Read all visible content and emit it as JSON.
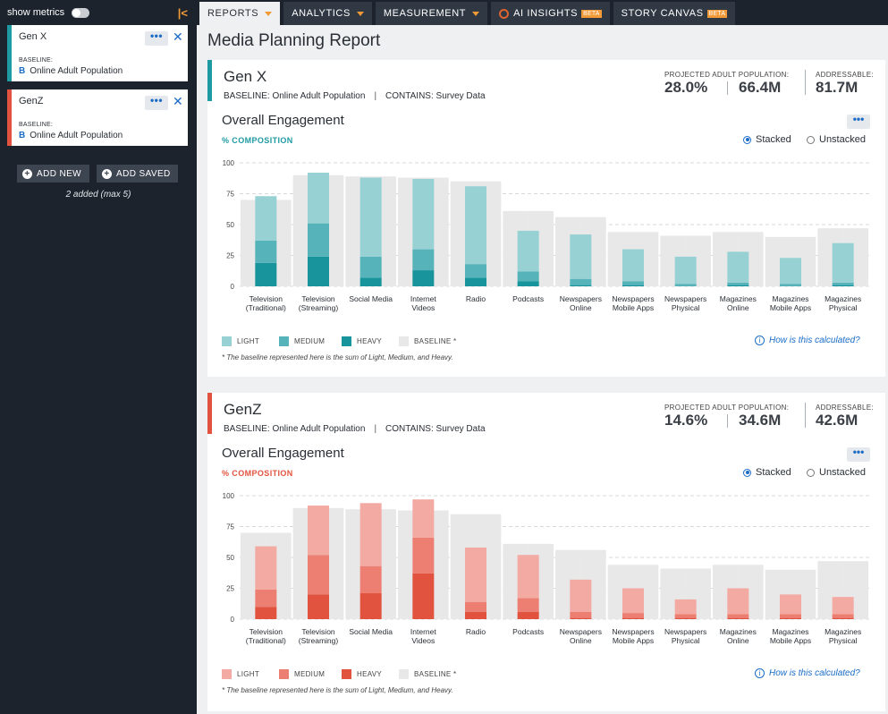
{
  "sidebar": {
    "show_metrics": "show metrics",
    "collapse_icon": "|<",
    "segments": [
      {
        "name": "Gen X",
        "color": "#1f9aa3",
        "baseline_label": "BASELINE:",
        "baseline": "Online Adult Population",
        "more": "•••",
        "close": "✕"
      },
      {
        "name": "GenZ",
        "color": "#e2533f",
        "baseline_label": "BASELINE:",
        "baseline": "Online Adult Population",
        "more": "•••",
        "close": "✕"
      }
    ],
    "add_new": "ADD NEW",
    "add_saved": "ADD SAVED",
    "added_note": "2 added (max 5)"
  },
  "nav": {
    "tabs": [
      {
        "label": "REPORTS",
        "dropdown": true
      },
      {
        "label": "ANALYTICS",
        "dropdown": true
      },
      {
        "label": "MEASUREMENT",
        "dropdown": true
      },
      {
        "label": "AI INSIGHTS",
        "badge": "BETA"
      },
      {
        "label": "STORY CANVAS",
        "badge": "BETA"
      }
    ]
  },
  "page": {
    "title": "Media Planning Report"
  },
  "panels": [
    {
      "segment": "Gen X",
      "accent": "#1f9aa3",
      "baseline": "BASELINE: Online Adult Population",
      "contains": "CONTAINS: Survey Data",
      "proj_label": "PROJECTED ADULT POPULATION:",
      "pct": "28.0%",
      "proj_value": "66.4M",
      "addr_label": "ADDRESSABLE:",
      "addr_value": "81.7M",
      "engagement_title": "Overall Engagement",
      "composition_label": "% COMPOSITION",
      "stacked_label": "Stacked",
      "unstacked_label": "Unstacked",
      "how_calc": "How is this calculated?",
      "footnote": "* The baseline represented here is the sum of Light, Medium, and Heavy.",
      "legend": [
        "LIGHT",
        "MEDIUM",
        "HEAVY",
        "BASELINE *"
      ]
    },
    {
      "segment": "GenZ",
      "accent": "#e2533f",
      "baseline": "BASELINE: Online Adult Population",
      "contains": "CONTAINS: Survey Data",
      "proj_label": "PROJECTED ADULT POPULATION:",
      "pct": "14.6%",
      "proj_value": "34.6M",
      "addr_label": "ADDRESSABLE:",
      "addr_value": "42.6M",
      "engagement_title": "Overall Engagement",
      "composition_label": "% COMPOSITION",
      "stacked_label": "Stacked",
      "unstacked_label": "Unstacked",
      "how_calc": "How is this calculated?",
      "footnote": "* The baseline represented here is the sum of Light, Medium, and Heavy.",
      "legend": [
        "LIGHT",
        "MEDIUM",
        "HEAVY",
        "BASELINE *"
      ]
    }
  ],
  "chart_data": [
    {
      "type": "bar",
      "stacked": true,
      "ylim": [
        0,
        100
      ],
      "yticks": [
        0,
        25,
        50,
        75,
        100
      ],
      "categories": [
        "Television (Traditional)",
        "Television (Streaming)",
        "Social Media",
        "Internet Videos",
        "Radio",
        "Podcasts",
        "Newspapers Online",
        "Newspapers Mobile Apps",
        "Newspapers Physical",
        "Magazines Online",
        "Magazines Mobile Apps",
        "Magazines Physical"
      ],
      "colors": {
        "light": "#97d1d4",
        "medium": "#56b3b9",
        "heavy": "#17949c",
        "baseline": "#e8e8e8"
      },
      "series": [
        {
          "name": "HEAVY",
          "values": [
            19,
            24,
            7,
            13,
            7,
            4,
            1,
            1,
            0,
            1,
            0,
            1
          ]
        },
        {
          "name": "MEDIUM",
          "values": [
            18,
            27,
            17,
            17,
            11,
            8,
            5,
            3,
            2,
            2,
            2,
            2
          ]
        },
        {
          "name": "LIGHT",
          "values": [
            36,
            41,
            64,
            57,
            63,
            33,
            36,
            26,
            22,
            25,
            21,
            32
          ]
        }
      ],
      "baseline": [
        [
          70,
          90,
          89,
          88,
          85,
          61,
          56,
          44,
          41,
          44,
          40,
          47
        ],
        [
          70,
          90,
          89,
          88,
          85,
          61,
          56,
          44,
          41,
          44,
          40,
          47
        ]
      ]
    },
    {
      "type": "bar",
      "stacked": true,
      "ylim": [
        0,
        100
      ],
      "yticks": [
        0,
        25,
        50,
        75,
        100
      ],
      "categories": [
        "Television (Traditional)",
        "Television (Streaming)",
        "Social Media",
        "Internet Videos",
        "Radio",
        "Podcasts",
        "Newspapers Online",
        "Newspapers Mobile Apps",
        "Newspapers Physical",
        "Magazines Online",
        "Magazines Mobile Apps",
        "Magazines Physical"
      ],
      "colors": {
        "light": "#f3aaa2",
        "medium": "#ec7f72",
        "heavy": "#e2533f",
        "baseline": "#e8e8e8"
      },
      "series": [
        {
          "name": "HEAVY",
          "values": [
            10,
            20,
            21,
            37,
            6,
            6,
            1,
            1,
            1,
            1,
            1,
            1
          ]
        },
        {
          "name": "MEDIUM",
          "values": [
            14,
            32,
            22,
            29,
            8,
            11,
            5,
            4,
            3,
            3,
            3,
            3
          ]
        },
        {
          "name": "LIGHT",
          "values": [
            35,
            40,
            51,
            31,
            44,
            35,
            26,
            20,
            12,
            21,
            16,
            14
          ]
        }
      ],
      "baseline": [
        [
          70,
          90,
          89,
          88,
          85,
          61,
          56,
          44,
          41,
          44,
          40,
          47
        ],
        [
          70,
          90,
          89,
          88,
          85,
          61,
          56,
          44,
          41,
          44,
          40,
          47
        ]
      ]
    }
  ]
}
